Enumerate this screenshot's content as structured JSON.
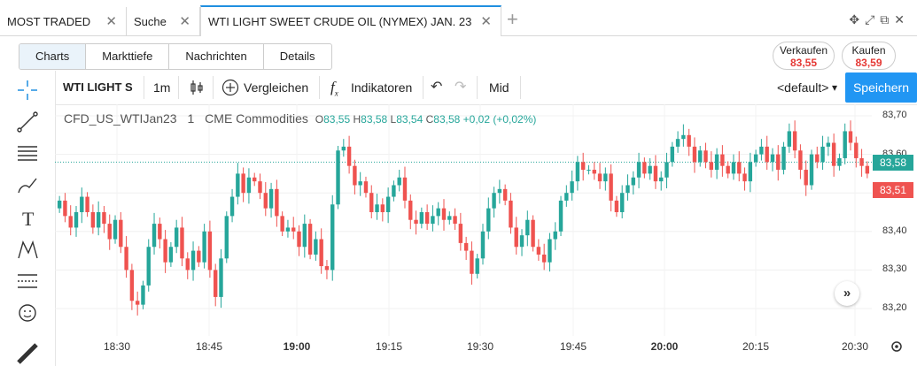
{
  "tabs": [
    {
      "label": "MOST TRADED",
      "close": "✕"
    },
    {
      "label": "Suche",
      "close": "✕"
    },
    {
      "label": "WTI LIGHT SWEET CRUDE OIL (NYMEX) JAN. 23",
      "close": "✕"
    }
  ],
  "add_tab": "+",
  "subtabs": [
    "Charts",
    "Markttiefe",
    "Nachrichten",
    "Details"
  ],
  "sell": {
    "label": "Verkaufen",
    "price": "83,55"
  },
  "buy": {
    "label": "Kaufen",
    "price": "83,59"
  },
  "toolbar": {
    "symbol": "WTI LIGHT S",
    "interval": "1m",
    "compare": "Vergleichen",
    "indicators": "Indikatoren",
    "price_mode": "Mid",
    "template": "<default>",
    "save": "Speichern"
  },
  "legend": {
    "symbol": "CFD_US_WTIJan23",
    "interval": "1",
    "source": "CME Commodities",
    "o_label": "O",
    "o": "83,55",
    "h_label": "H",
    "h": "83,58",
    "l_label": "L",
    "l": "83,54",
    "c_label": "C",
    "c": "83,58",
    "change": "+0,02 (+0,02%)"
  },
  "colors": {
    "up": "#26a69a",
    "down": "#ef5350",
    "accent": "#2196f3"
  },
  "chart_data": {
    "type": "candlestick",
    "y_ticks": [
      "83,70",
      "83,60",
      "83,50",
      "83,40",
      "83,30",
      "83,20"
    ],
    "ylim": [
      83.15,
      83.73
    ],
    "x_ticks": [
      "18:30",
      "18:45",
      "19:00",
      "19:15",
      "19:30",
      "19:45",
      "20:00",
      "20:15",
      "20:30"
    ],
    "current_price": "83,58",
    "sell_price_marker": "83,51",
    "close_series": [
      83.48,
      83.44,
      83.41,
      83.45,
      83.49,
      83.45,
      83.41,
      83.45,
      83.42,
      83.38,
      83.43,
      83.36,
      83.3,
      83.22,
      83.21,
      83.26,
      83.36,
      83.42,
      83.38,
      83.32,
      83.36,
      83.41,
      83.33,
      83.3,
      83.35,
      83.32,
      83.4,
      83.3,
      83.23,
      83.33,
      83.44,
      83.49,
      83.55,
      83.5,
      83.54,
      83.53,
      83.5,
      83.46,
      83.51,
      83.44,
      83.4,
      83.41,
      83.4,
      83.36,
      83.42,
      83.34,
      83.38,
      83.31,
      83.3,
      83.47,
      83.61,
      83.62,
      83.57,
      83.52,
      83.53,
      83.5,
      83.45,
      83.47,
      83.45,
      83.49,
      83.52,
      83.54,
      83.48,
      83.43,
      83.42,
      83.45,
      83.42,
      83.44,
      83.46,
      83.43,
      83.44,
      83.42,
      83.37,
      83.35,
      83.29,
      83.33,
      83.4,
      83.46,
      83.5,
      83.51,
      83.48,
      83.41,
      83.36,
      83.39,
      83.43,
      83.36,
      83.34,
      83.32,
      83.38,
      83.4,
      83.48,
      83.5,
      83.53,
      83.58,
      83.56,
      83.56,
      83.55,
      83.53,
      83.55,
      83.48,
      83.45,
      83.5,
      83.52,
      83.54,
      83.58,
      83.55,
      83.57,
      83.53,
      83.54,
      83.58,
      83.62,
      83.64,
      83.65,
      83.62,
      83.58,
      83.61,
      83.58,
      83.56,
      83.6,
      83.57,
      83.55,
      83.58,
      83.55,
      83.53,
      83.58,
      83.6,
      83.62,
      83.58,
      83.6,
      83.56,
      83.62,
      83.66,
      83.61,
      83.56,
      83.52,
      83.6,
      83.58,
      83.62,
      83.63,
      83.57,
      83.59,
      83.66,
      83.63,
      83.59,
      83.57,
      83.55
    ],
    "start_value": 83.46
  }
}
